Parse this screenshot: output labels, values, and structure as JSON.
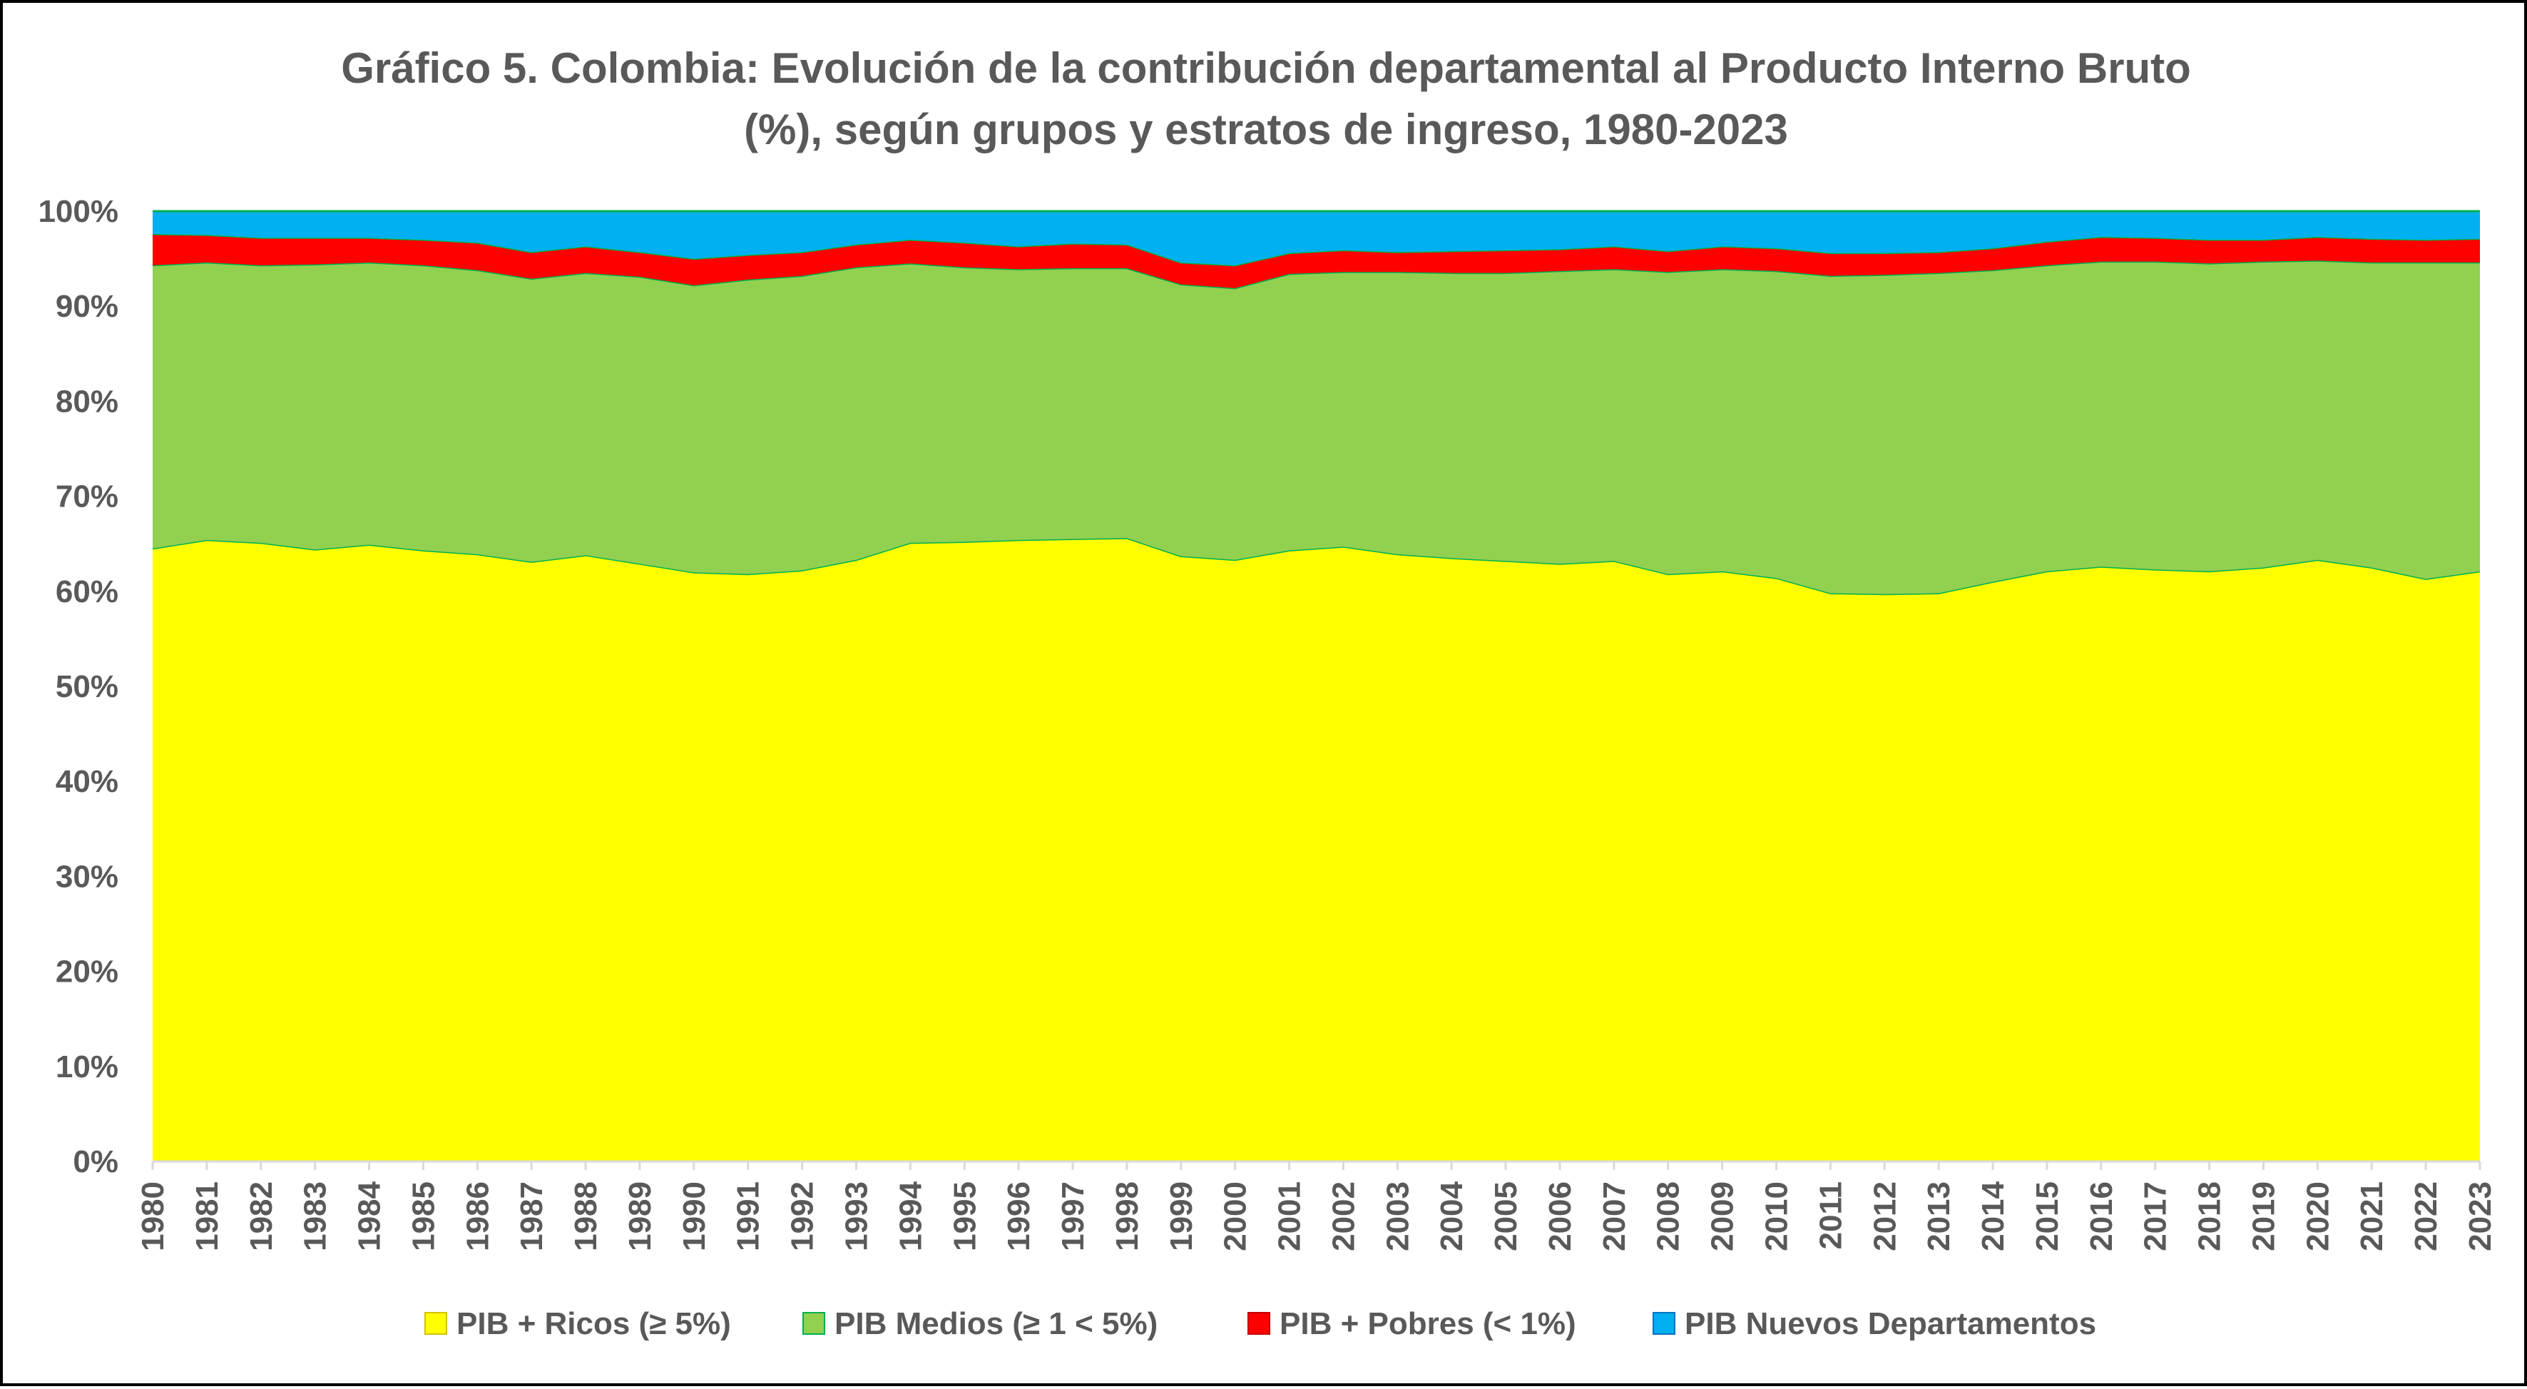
{
  "chart_data": {
    "type": "area",
    "stacked": true,
    "title": "Gráfico 5. Colombia: Evolución de la contribución departamental  al Producto Interno Bruto (%), según grupos y estratos de ingreso, 1980-2023",
    "title_lines": [
      "Gráfico 5. Colombia: Evolución de la contribución departamental  al Producto Interno Bruto",
      "(%), según grupos y estratos de ingreso, 1980-2023"
    ],
    "xlabel": "",
    "ylabel": "",
    "ylim": [
      0,
      100
    ],
    "y_ticks": [
      "0%",
      "10%",
      "20%",
      "30%",
      "40%",
      "50%",
      "60%",
      "70%",
      "80%",
      "90%",
      "100%"
    ],
    "grid": false,
    "legend_position": "bottom",
    "x": [
      "1980",
      "1981",
      "1982",
      "1983",
      "1984",
      "1985",
      "1986",
      "1987",
      "1988",
      "1989",
      "1990",
      "1991",
      "1992",
      "1993",
      "1994",
      "1995",
      "1996",
      "1997",
      "1998",
      "1999",
      "2000",
      "2001",
      "2002",
      "2003",
      "2004",
      "2005",
      "2006",
      "2007",
      "2008",
      "2009",
      "2010",
      "2011",
      "2012",
      "2013",
      "2014",
      "2015",
      "2016",
      "2017",
      "2018",
      "2019",
      "2020",
      "2021",
      "2022",
      "2023"
    ],
    "series": [
      {
        "name": "PIB + Ricos (≥ 5%)",
        "color": "#FFFF00",
        "values": [
          64.5,
          65.4,
          65.1,
          64.4,
          64.9,
          64.3,
          63.9,
          63.1,
          63.8,
          62.9,
          62.0,
          61.8,
          62.2,
          63.3,
          65.1,
          65.2,
          65.4,
          65.5,
          65.6,
          63.7,
          63.3,
          64.3,
          64.7,
          63.9,
          63.5,
          63.2,
          62.9,
          63.2,
          61.8,
          62.1,
          61.4,
          59.8,
          59.7,
          59.8,
          61.0,
          62.1,
          62.6,
          62.3,
          62.1,
          62.5,
          63.3,
          62.5,
          61.3,
          62.1
        ]
      },
      {
        "name": "PIB Medios (≥ 1 < 5%)",
        "color": "#92D050",
        "values": [
          29.8,
          29.2,
          29.2,
          30.0,
          29.7,
          30.0,
          29.9,
          29.8,
          29.7,
          30.2,
          30.2,
          31.0,
          31.0,
          30.8,
          29.4,
          28.9,
          28.5,
          28.5,
          28.4,
          28.6,
          28.6,
          29.1,
          28.9,
          29.7,
          30.0,
          30.3,
          30.8,
          30.7,
          31.8,
          31.8,
          32.3,
          33.4,
          33.6,
          33.7,
          32.8,
          32.2,
          32.1,
          32.4,
          32.4,
          32.2,
          31.5,
          32.1,
          33.3,
          32.5
        ]
      },
      {
        "name": "PIB + Pobres (< 1%)",
        "color": "#FF0000",
        "values": [
          3.3,
          2.9,
          2.9,
          2.8,
          2.6,
          2.7,
          2.9,
          2.8,
          2.8,
          2.6,
          2.8,
          2.6,
          2.5,
          2.4,
          2.5,
          2.6,
          2.4,
          2.6,
          2.5,
          2.3,
          2.4,
          2.2,
          2.3,
          2.1,
          2.3,
          2.4,
          2.3,
          2.4,
          2.2,
          2.4,
          2.4,
          2.4,
          2.3,
          2.2,
          2.3,
          2.5,
          2.6,
          2.5,
          2.5,
          2.3,
          2.5,
          2.5,
          2.4,
          2.5
        ]
      },
      {
        "name": "PIB Nuevos Departamentos",
        "color": "#00B0F0",
        "values": [
          2.4,
          2.5,
          2.8,
          2.8,
          2.8,
          3.0,
          3.3,
          4.3,
          3.7,
          4.3,
          5.0,
          4.6,
          4.3,
          3.5,
          3.0,
          3.3,
          3.7,
          3.4,
          3.5,
          5.4,
          5.7,
          4.4,
          4.1,
          4.3,
          4.2,
          4.1,
          4.0,
          3.7,
          4.2,
          3.7,
          3.9,
          4.4,
          4.4,
          4.3,
          3.9,
          3.2,
          2.7,
          2.8,
          3.0,
          3.0,
          2.7,
          2.9,
          3.0,
          2.9
        ]
      }
    ]
  }
}
